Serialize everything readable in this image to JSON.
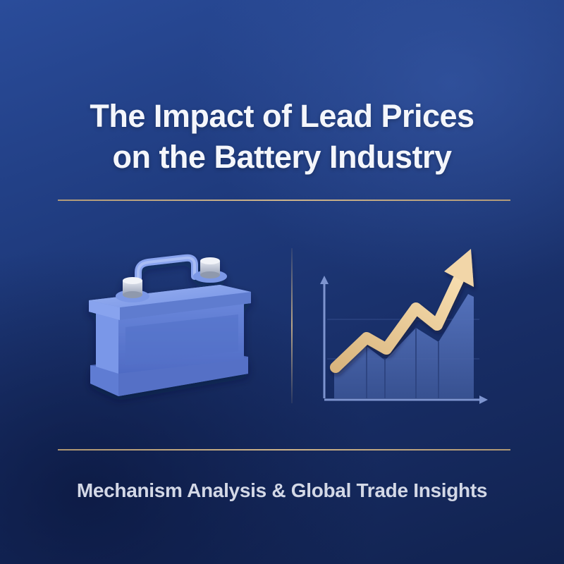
{
  "title": {
    "line1": "The Impact of Lead Prices",
    "line2": "on the Battery Industry"
  },
  "subtitle": "Mechanism Analysis & Global Trade Insights",
  "icons": {
    "left": "battery-icon",
    "right": "rising-price-chart-icon"
  },
  "colors": {
    "background": "#1c3266",
    "accent_gold": "#d6ba8c",
    "battery": "#6f8fe0",
    "arrow": "#f0d2a0"
  }
}
